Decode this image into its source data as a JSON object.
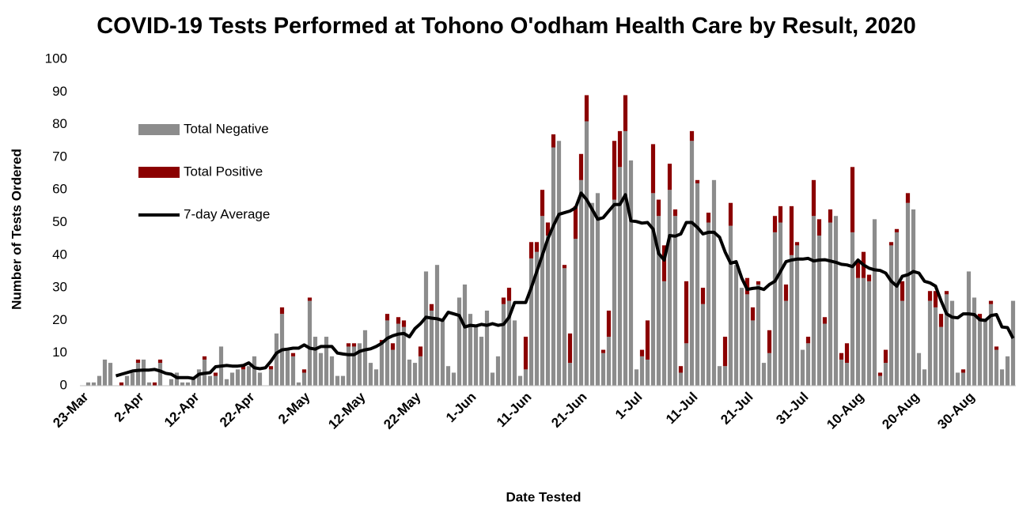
{
  "chart_data": {
    "type": "stacked_bar_line",
    "title": "COVID-19 Tests Performed at Tohono O'odham Health Care by Result, 2020",
    "x_label": "Date Tested",
    "y_label": "Number of Tests Ordered",
    "legend": "upper left",
    "categories": [
      "23-Mar",
      null,
      null,
      null,
      null,
      null,
      null,
      null,
      null,
      null,
      "2-Apr",
      null,
      null,
      null,
      null,
      null,
      null,
      null,
      null,
      null,
      "12-Apr",
      null,
      null,
      null,
      null,
      null,
      null,
      null,
      null,
      null,
      "22-Apr",
      null,
      null,
      null,
      null,
      null,
      null,
      null,
      null,
      null,
      "2-May",
      null,
      null,
      null,
      null,
      null,
      null,
      null,
      null,
      null,
      "12-May",
      null,
      null,
      null,
      null,
      null,
      null,
      null,
      null,
      null,
      "22-May",
      null,
      null,
      null,
      null,
      null,
      null,
      null,
      null,
      null,
      "1-Jun",
      null,
      null,
      null,
      null,
      null,
      null,
      null,
      null,
      null,
      "11-Jun",
      null,
      null,
      null,
      null,
      null,
      null,
      null,
      null,
      null,
      "21-Jun",
      null,
      null,
      null,
      null,
      null,
      null,
      null,
      null,
      null,
      "1-Jul",
      null,
      null,
      null,
      null,
      null,
      null,
      null,
      null,
      null,
      "11-Jul",
      null,
      null,
      null,
      null,
      null,
      null,
      null,
      null,
      null,
      "21-Jul",
      null,
      null,
      null,
      null,
      null,
      null,
      null,
      null,
      null,
      "31-Jul",
      null,
      null,
      null,
      null,
      null,
      null,
      null,
      null,
      null,
      "10-Aug",
      null,
      null,
      null,
      null,
      null,
      null,
      null,
      null,
      null,
      "20-Aug",
      null,
      null,
      null,
      null,
      null,
      null,
      null,
      null,
      null,
      "30-Aug",
      null,
      null,
      null,
      null,
      null,
      null,
      null,
      null
    ],
    "series": [
      {
        "name": "Total Negative",
        "kind": "bar",
        "color": "#8c8c8c",
        "values": [
          0,
          1,
          1,
          3,
          8,
          7,
          0,
          0,
          3,
          4,
          7,
          8,
          1,
          0,
          7,
          0,
          2,
          4,
          1,
          1,
          2,
          5,
          8,
          3,
          3,
          12,
          2,
          4,
          5,
          5,
          6,
          9,
          4,
          0,
          5,
          16,
          22,
          11,
          9,
          1,
          4,
          26,
          15,
          10,
          15,
          9,
          3,
          3,
          12,
          12,
          13,
          17,
          7,
          5,
          13,
          20,
          11,
          19,
          18,
          8,
          7,
          9,
          35,
          23,
          37,
          20,
          6,
          4,
          27,
          31,
          22,
          18,
          15,
          23,
          4,
          9,
          25,
          26,
          20,
          3,
          5,
          39,
          41,
          52,
          46,
          73,
          75,
          36,
          7,
          45,
          63,
          81,
          56,
          59,
          10,
          15,
          57,
          67,
          78,
          69,
          5,
          9,
          8,
          59,
          52,
          32,
          60,
          52,
          4,
          13,
          75,
          62,
          25,
          50,
          63,
          6,
          6,
          49,
          37,
          30,
          28,
          20,
          31,
          7,
          10,
          47,
          50,
          26,
          40,
          43,
          11,
          13,
          52,
          46,
          19,
          50,
          52,
          8,
          7,
          47,
          33,
          33,
          32,
          51,
          3,
          7,
          43,
          47,
          26,
          56,
          54,
          10,
          5,
          26,
          24,
          18,
          28,
          26,
          4,
          4,
          35,
          27,
          20,
          20,
          25,
          11,
          5,
          9,
          26
        ]
      },
      {
        "name": "Total Positive",
        "kind": "bar",
        "color": "#8b0000",
        "values": [
          0,
          0,
          0,
          0,
          0,
          0,
          0,
          1,
          0,
          0,
          1,
          0,
          0,
          1,
          1,
          0,
          0,
          0,
          0,
          0,
          0,
          0,
          1,
          0,
          1,
          0,
          0,
          0,
          0,
          1,
          0,
          0,
          0,
          0,
          1,
          0,
          2,
          0,
          1,
          0,
          1,
          1,
          0,
          0,
          0,
          0,
          0,
          0,
          1,
          1,
          0,
          0,
          0,
          0,
          1,
          2,
          2,
          2,
          2,
          0,
          0,
          3,
          0,
          2,
          0,
          0,
          0,
          0,
          0,
          0,
          0,
          0,
          0,
          0,
          0,
          0,
          2,
          4,
          0,
          0,
          10,
          5,
          3,
          8,
          4,
          4,
          0,
          1,
          9,
          10,
          8,
          8,
          0,
          0,
          1,
          8,
          18,
          11,
          11,
          0,
          0,
          2,
          12,
          15,
          5,
          11,
          8,
          2,
          2,
          19,
          3,
          1,
          5,
          3,
          0,
          0,
          9,
          7,
          0,
          0,
          5,
          4,
          1,
          0,
          7,
          5,
          5,
          5,
          15,
          1,
          0,
          2,
          11,
          5,
          2,
          4,
          0,
          2,
          6,
          20,
          5,
          8,
          2,
          0,
          1,
          4,
          1,
          1,
          6,
          3,
          0,
          0,
          0,
          3,
          5,
          4,
          1,
          0,
          0,
          1,
          0,
          0,
          2,
          0,
          1,
          1,
          0,
          0,
          0
        ]
      },
      {
        "name": "7-day Average",
        "kind": "line",
        "color": "#000000",
        "values": [
          null,
          null,
          null,
          null,
          null,
          null,
          3,
          3.5,
          4,
          4.5,
          4.7,
          4.8,
          4.8,
          5,
          4.5,
          3.8,
          3.5,
          2.5,
          2.5,
          2.5,
          2.2,
          3.5,
          3.8,
          4,
          5.8,
          6,
          6.2,
          6,
          6,
          6.2,
          7,
          5.5,
          5.2,
          5.5,
          7.5,
          10,
          11,
          11.2,
          11.5,
          11.5,
          12.5,
          11.5,
          11.2,
          12,
          12,
          12,
          10,
          9.7,
          9.5,
          9.5,
          10.5,
          11,
          11.3,
          12,
          13,
          14.5,
          15.3,
          15.8,
          16,
          15,
          17.5,
          19,
          21,
          20.7,
          20.5,
          20,
          22.5,
          22,
          21.5,
          18,
          18.5,
          18.3,
          18.8,
          18.5,
          19,
          18.5,
          18.8,
          21,
          25.5,
          25.5,
          25.5,
          30,
          35,
          40,
          45,
          49,
          52.5,
          53,
          53.5,
          54.5,
          59,
          57,
          54,
          51,
          51.5,
          53.5,
          55.5,
          55.5,
          58.5,
          50.5,
          50.3,
          49.8,
          50,
          48,
          40.5,
          38.5,
          46,
          45.8,
          46.5,
          50,
          50,
          48.5,
          46.5,
          47,
          47,
          45.5,
          41,
          37.5,
          38,
          33,
          29.5,
          29.8,
          30,
          29.5,
          31,
          32,
          35,
          38,
          38.5,
          38.8,
          38.8,
          39,
          38.2,
          38.5,
          38.6,
          38.2,
          37.8,
          37.2,
          37,
          36.5,
          38.5,
          37,
          36,
          35.5,
          35.3,
          34.5,
          32,
          30.5,
          33.5,
          34,
          35,
          34.5,
          32,
          31.5,
          30.5,
          26,
          22,
          21,
          20.8,
          22,
          22,
          21.8,
          20.2,
          20,
          21.5,
          21.8,
          18,
          17.8,
          14.5
        ]
      }
    ],
    "ylim": [
      0,
      100
    ],
    "yticks": [
      0,
      10,
      20,
      30,
      40,
      50,
      60,
      70,
      80,
      90,
      100
    ],
    "grid": false
  }
}
